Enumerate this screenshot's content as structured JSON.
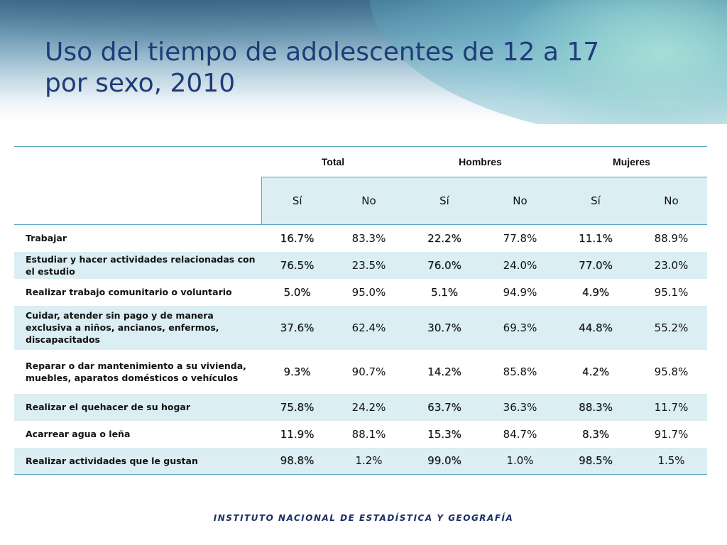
{
  "title_line1": "Uso del tiempo de adolescentes de 12 a 17",
  "title_line2": "por sexo, 2010",
  "table": {
    "groups": [
      "Total",
      "Hombres",
      "Mujeres"
    ],
    "subheaders": [
      "Sí",
      "No",
      "Sí",
      "No",
      "Sí",
      "No"
    ],
    "rows": [
      {
        "label": "Trabajar",
        "values": [
          "16.7%",
          "83.3%",
          "22.2%",
          "77.8%",
          "11.1%",
          "88.9%"
        ]
      },
      {
        "label": "Estudiar y hacer actividades relacionadas con el estudio",
        "values": [
          "76.5%",
          "23.5%",
          "76.0%",
          "24.0%",
          "77.0%",
          "23.0%"
        ]
      },
      {
        "label": "Realizar trabajo comunitario o voluntario",
        "values": [
          "5.0%",
          "95.0%",
          "5.1%",
          "94.9%",
          "4.9%",
          "95.1%"
        ]
      },
      {
        "label": "Cuidar, atender sin pago y de manera exclusiva a niños, ancianos, enfermos, discapacitados",
        "values": [
          "37.6%",
          "62.4%",
          "30.7%",
          "69.3%",
          "44.8%",
          "55.2%"
        ]
      },
      {
        "label": "Reparar o dar mantenimiento a su vivienda, muebles, aparatos domésticos o vehículos",
        "values": [
          "9.3%",
          "90.7%",
          "14.2%",
          "85.8%",
          "4.2%",
          "95.8%"
        ]
      },
      {
        "label": "Realizar el quehacer de su hogar",
        "values": [
          "75.8%",
          "24.2%",
          "63.7%",
          "36.3%",
          "88.3%",
          "11.7%"
        ]
      },
      {
        "label": "Acarrear agua o leña",
        "values": [
          "11.9%",
          "88.1%",
          "15.3%",
          "84.7%",
          "8.3%",
          "91.7%"
        ]
      },
      {
        "label": "Realizar actividades que le gustan",
        "values": [
          "98.8%",
          "1.2%",
          "99.0%",
          "1.0%",
          "98.5%",
          "1.5%"
        ]
      }
    ]
  },
  "footer": "INSTITUTO NACIONAL  DE ESTADÍSTICA Y GEOGRAFÍA",
  "colors": {
    "title": "#1f3c78",
    "accent_line": "#5aa5c4",
    "row_shade": "#daeef3",
    "footer": "#1a2f66"
  }
}
